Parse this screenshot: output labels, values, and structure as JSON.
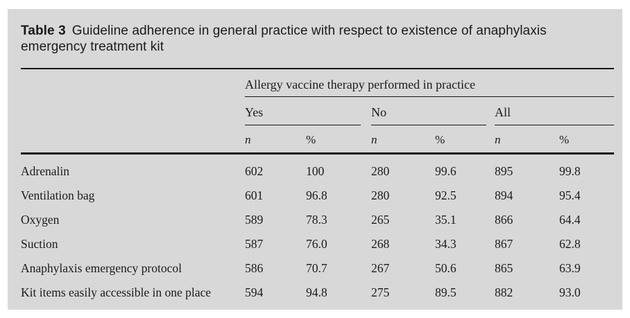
{
  "page": {
    "background_color": "#ffffff",
    "panel_color": "#d8d8d8",
    "text_color": "#1b1b1b",
    "rule_color": "#161616"
  },
  "caption": {
    "number": "Table 3",
    "text": "Guideline adherence in general practice with respect to existence of anaphylaxis emergency treatment kit"
  },
  "table": {
    "span_header": "Allergy vaccine therapy performed in practice",
    "group_headers": [
      "Yes",
      "No",
      "All"
    ],
    "sub_headers": [
      "n",
      "%",
      "n",
      "%",
      "n",
      "%"
    ],
    "rows": [
      {
        "label": "Adrenalin",
        "cells": [
          "602",
          "100",
          "280",
          "99.6",
          "895",
          "99.8"
        ]
      },
      {
        "label": "Ventilation bag",
        "cells": [
          "601",
          "96.8",
          "280",
          "92.5",
          "894",
          "95.4"
        ]
      },
      {
        "label": "Oxygen",
        "cells": [
          "589",
          "78.3",
          "265",
          "35.1",
          "866",
          "64.4"
        ]
      },
      {
        "label": "Suction",
        "cells": [
          "587",
          "76.0",
          "268",
          "34.3",
          "867",
          "62.8"
        ]
      },
      {
        "label": "Anaphylaxis emergency protocol",
        "cells": [
          "586",
          "70.7",
          "267",
          "50.6",
          "865",
          "63.9"
        ]
      },
      {
        "label": "Kit items easily accessible in one place",
        "cells": [
          "594",
          "94.8",
          "275",
          "89.5",
          "882",
          "93.0"
        ]
      }
    ]
  }
}
